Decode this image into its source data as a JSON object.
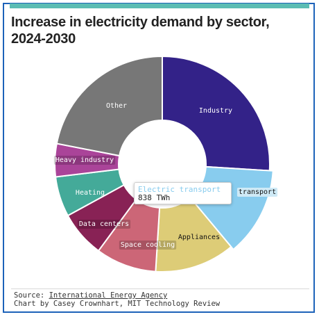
{
  "title": "Increase in electricity demand by sector, 2024-2030",
  "colors": {
    "accent_bar": "#5bbcb3",
    "frame": "#1c62b9"
  },
  "chart_data": {
    "type": "pie",
    "variant": "donut",
    "title": "Increase in electricity demand by sector, 2024-2030",
    "unit": "TWh",
    "start_angle_deg": 0,
    "slices": [
      {
        "name": "Industry",
        "value": 1680,
        "color": "#332288",
        "label": "Industry",
        "label_color": "#ffffff"
      },
      {
        "name": "Electric transport",
        "value": 838,
        "color": "#88ccee",
        "label": "transport",
        "label_color": "#111111",
        "highlight": true
      },
      {
        "name": "Appliances",
        "value": 780,
        "color": "#ddcc77",
        "label": "Appliances",
        "label_color": "#111111"
      },
      {
        "name": "Space cooling",
        "value": 590,
        "color": "#cc6677",
        "label": "Space cooling",
        "label_color": "#ffffff"
      },
      {
        "name": "Data centers",
        "value": 450,
        "color": "#882255",
        "label": "Data centers",
        "label_color": "#ffffff"
      },
      {
        "name": "Heating",
        "value": 390,
        "color": "#44aa99",
        "label": "Heating",
        "label_color": "#ffffff"
      },
      {
        "name": "Heavy industry",
        "value": 320,
        "color": "#aa4499",
        "label": "Heavy industry",
        "label_color": "#ffffff"
      },
      {
        "name": "Other",
        "value": 1420,
        "color": "#777777",
        "label": "Other",
        "label_color": "#ffffff"
      }
    ],
    "tooltip": {
      "name": "Electric transport",
      "value": "838 TWh",
      "name_color": "#88ccee"
    }
  },
  "footer": {
    "source_prefix": "Source: ",
    "source_link": "International Energy Agency",
    "credit": "Chart by Casey Crownhart, MIT Technology Review"
  }
}
